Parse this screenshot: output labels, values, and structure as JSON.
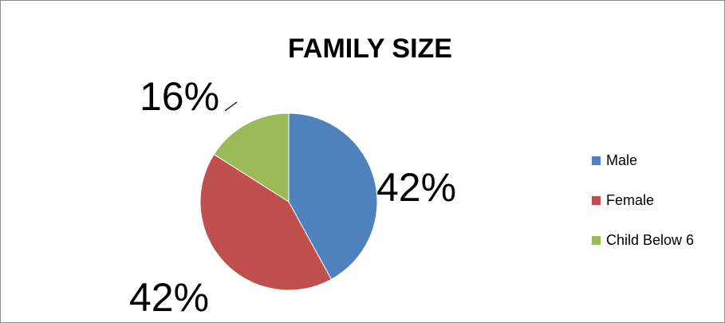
{
  "chart_data": {
    "type": "pie",
    "title": "FAMILY SIZE",
    "categories": [
      "Male",
      "Female",
      "Child Below 6"
    ],
    "values": [
      42,
      42,
      16
    ],
    "data_labels": [
      "42%",
      "42%",
      "16%"
    ],
    "colors": [
      "#4f81bd",
      "#c0504d",
      "#9bbb59"
    ],
    "legend": "right"
  }
}
